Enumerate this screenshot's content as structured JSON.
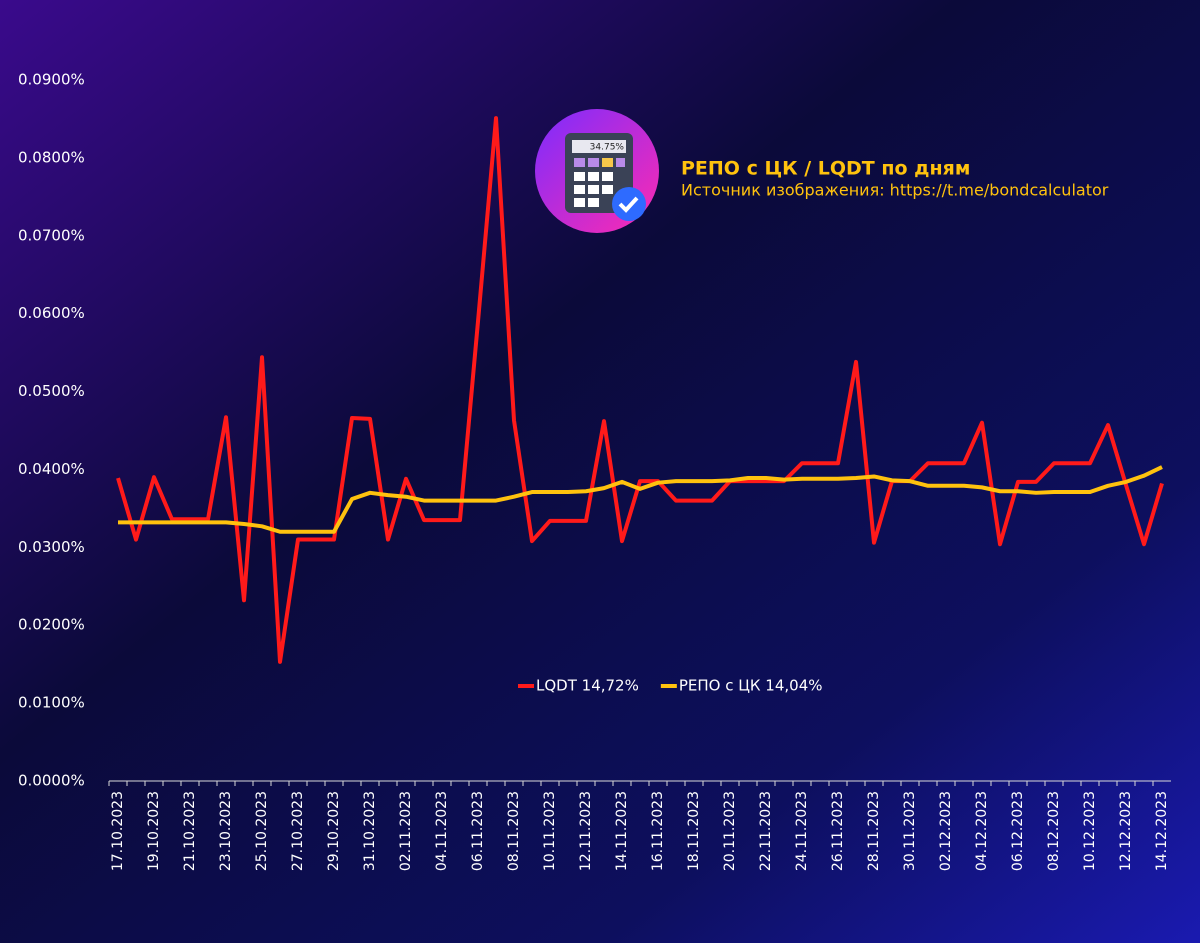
{
  "chart_data": {
    "type": "line",
    "title": "РЕПО с ЦК / LQDT по дням",
    "subtitle": "Источник изображения: https://t.me/bondcalculator",
    "logo_text": "34.75%",
    "categories": [
      "17.10.2023",
      null,
      "19.10.2023",
      null,
      "21.10.2023",
      null,
      "23.10.2023",
      null,
      "25.10.2023",
      null,
      "27.10.2023",
      null,
      "29.10.2023",
      null,
      "31.10.2023",
      null,
      "02.11.2023",
      null,
      "04.11.2023",
      null,
      "06.11.2023",
      null,
      "08.11.2023",
      null,
      "10.11.2023",
      null,
      "12.11.2023",
      null,
      "14.11.2023",
      null,
      "16.11.2023",
      null,
      "18.11.2023",
      null,
      "20.11.2023",
      null,
      "22.11.2023",
      null,
      "24.11.2023",
      null,
      "26.11.2023",
      null,
      "28.11.2023",
      null,
      "30.11.2023",
      null,
      "02.12.2023",
      null,
      "04.12.2023",
      null,
      "06.12.2023",
      null,
      "08.12.2023",
      null,
      "10.12.2023",
      null,
      "12.12.2023",
      null,
      "14.12.2023"
    ],
    "series": [
      {
        "name": "LQDT 14,72%",
        "color": "#ff1a1a",
        "values": [
          0.0389,
          0.031,
          0.039,
          0.0336,
          0.0336,
          0.0336,
          0.0467,
          0.0232,
          0.0544,
          0.0153,
          0.031,
          0.031,
          0.031,
          0.0466,
          0.0465,
          0.031,
          0.0388,
          0.0335,
          0.0335,
          0.0335,
          0.059,
          0.0851,
          0.0463,
          0.0308,
          0.0334,
          0.0334,
          0.0334,
          0.0462,
          0.0308,
          0.0385,
          0.0385,
          0.036,
          0.036,
          0.036,
          0.0385,
          0.0385,
          0.0385,
          0.0385,
          0.0408,
          0.0408,
          0.0408,
          0.0538,
          0.0306,
          0.0385,
          0.0385,
          0.0408,
          0.0408,
          0.0408,
          0.046,
          0.0304,
          0.0384,
          0.0384,
          0.0408,
          0.0408,
          0.0408,
          0.0457,
          0.038,
          0.0304,
          0.0382
        ]
      },
      {
        "name": "РЕПО с ЦК 14,04%",
        "color": "#ffc20e",
        "values": [
          0.0332,
          0.0332,
          0.0332,
          0.0332,
          0.0332,
          0.0332,
          0.0332,
          0.033,
          0.0327,
          0.032,
          0.032,
          0.032,
          0.032,
          0.0362,
          0.037,
          0.0367,
          0.0365,
          0.036,
          0.036,
          0.036,
          0.036,
          0.036,
          0.0365,
          0.0371,
          0.0371,
          0.0371,
          0.0372,
          0.0376,
          0.0384,
          0.0375,
          0.0383,
          0.0385,
          0.0385,
          0.0385,
          0.0386,
          0.0389,
          0.0389,
          0.0387,
          0.0388,
          0.0388,
          0.0388,
          0.0389,
          0.0391,
          0.0386,
          0.0385,
          0.0379,
          0.0379,
          0.0379,
          0.0377,
          0.0372,
          0.0372,
          0.037,
          0.0371,
          0.0371,
          0.0371,
          0.0379,
          0.0384,
          0.0392,
          0.0403
        ]
      }
    ],
    "ylim": [
      0,
      0.09
    ],
    "yticks": [
      {
        "value": 0,
        "label": "0.0000%"
      },
      {
        "value": 0.01,
        "label": "0.0100%"
      },
      {
        "value": 0.02,
        "label": "0.0200%"
      },
      {
        "value": 0.03,
        "label": "0.0300%"
      },
      {
        "value": 0.04,
        "label": "0.0400%"
      },
      {
        "value": 0.05,
        "label": "0.0500%"
      },
      {
        "value": 0.06,
        "label": "0.0600%"
      },
      {
        "value": 0.07,
        "label": "0.0700%"
      },
      {
        "value": 0.08,
        "label": "0.0800%"
      },
      {
        "value": 0.09,
        "label": "0.0900%"
      }
    ],
    "grid": false,
    "legend": "center"
  }
}
